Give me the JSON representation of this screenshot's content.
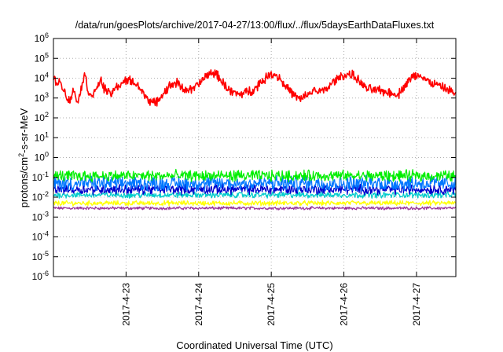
{
  "chart_data": {
    "type": "line",
    "title": "/data/run/goesPlots/archive/2017-04-27/13:00/flux/../flux/5daysEarthDataFluxes.txt",
    "xlabel": "Coordinated Universal Time (UTC)",
    "ylabel": {
      "base": "protons/cm",
      "sup": "2",
      "rest": "-s-sr-MeV"
    },
    "x_range": [
      "2017-04-22 00:00",
      "2017-04-27 13:00"
    ],
    "x_ticks": [
      "2017-4-23",
      "2017-4-24",
      "2017-4-25",
      "2017-4-26",
      "2017-4-27"
    ],
    "y_scale": "log",
    "y_ticks": [
      {
        "base": "10",
        "exp": "-6"
      },
      {
        "base": "10",
        "exp": "-5"
      },
      {
        "base": "10",
        "exp": "-4"
      },
      {
        "base": "10",
        "exp": "-3"
      },
      {
        "base": "10",
        "exp": "-2"
      },
      {
        "base": "10",
        "exp": "-1"
      },
      {
        "base": "10",
        "exp": "0"
      },
      {
        "base": "10",
        "exp": "1"
      },
      {
        "base": "10",
        "exp": "2"
      },
      {
        "base": "10",
        "exp": "3"
      },
      {
        "base": "10",
        "exp": "4"
      },
      {
        "base": "10",
        "exp": "5"
      },
      {
        "base": "10",
        "exp": "6"
      }
    ],
    "ylim": [
      1e-06,
      1000000.0
    ],
    "grid": true,
    "x_unit": "days",
    "series": [
      {
        "color": "#ff0000",
        "noise": 0.18,
        "values": [
          [
            0.0,
            8000
          ],
          [
            0.1,
            6000
          ],
          [
            0.18,
            1200
          ],
          [
            0.22,
            700
          ],
          [
            0.28,
            2500
          ],
          [
            0.32,
            800
          ],
          [
            0.35,
            900
          ],
          [
            0.4,
            7000
          ],
          [
            0.44,
            14000
          ],
          [
            0.48,
            2000
          ],
          [
            0.52,
            1500
          ],
          [
            0.58,
            2000
          ],
          [
            0.65,
            9000
          ],
          [
            0.7,
            3000
          ],
          [
            0.78,
            1500
          ],
          [
            0.85,
            3000
          ],
          [
            0.95,
            6000
          ],
          [
            1.05,
            8000
          ],
          [
            1.15,
            5000
          ],
          [
            1.22,
            2000
          ],
          [
            1.3,
            900
          ],
          [
            1.4,
            500
          ],
          [
            1.5,
            1500
          ],
          [
            1.6,
            4000
          ],
          [
            1.7,
            6000
          ],
          [
            1.78,
            3000
          ],
          [
            1.9,
            2500
          ],
          [
            2.0,
            5000
          ],
          [
            2.1,
            12000
          ],
          [
            2.18,
            20000
          ],
          [
            2.25,
            15000
          ],
          [
            2.35,
            5000
          ],
          [
            2.45,
            2000
          ],
          [
            2.55,
            1500
          ],
          [
            2.65,
            2000
          ],
          [
            2.75,
            2500
          ],
          [
            2.85,
            6000
          ],
          [
            2.95,
            12000
          ],
          [
            3.0,
            18000
          ],
          [
            3.1,
            12000
          ],
          [
            3.2,
            4000
          ],
          [
            3.3,
            1500
          ],
          [
            3.4,
            800
          ],
          [
            3.5,
            1500
          ],
          [
            3.6,
            2500
          ],
          [
            3.7,
            2000
          ],
          [
            3.8,
            4000
          ],
          [
            3.9,
            9000
          ],
          [
            4.0,
            14000
          ],
          [
            4.1,
            16000
          ],
          [
            4.2,
            8000
          ],
          [
            4.3,
            3000
          ],
          [
            4.45,
            2500
          ],
          [
            4.6,
            2000
          ],
          [
            4.75,
            1500
          ],
          [
            4.85,
            5000
          ],
          [
            4.95,
            12000
          ],
          [
            5.05,
            15000
          ],
          [
            5.15,
            7000
          ],
          [
            5.25,
            5000
          ],
          [
            5.35,
            3500
          ],
          [
            5.45,
            2500
          ],
          [
            5.55,
            1500
          ]
        ]
      },
      {
        "color": "#00ee00",
        "base": 0.12,
        "noise": 0.22,
        "values": []
      },
      {
        "color": "#0077ff",
        "base": 0.05,
        "noise": 0.3,
        "values": []
      },
      {
        "color": "#0000cc",
        "base": 0.025,
        "noise": 0.2,
        "values": []
      },
      {
        "color": "#00cccc",
        "base": 0.013,
        "noise": 0.12,
        "values": []
      },
      {
        "color": "#ffff00",
        "base": 0.005,
        "noise": 0.1,
        "values": []
      },
      {
        "color": "#993399",
        "base": 0.0028,
        "noise": 0.06,
        "values": []
      }
    ]
  }
}
